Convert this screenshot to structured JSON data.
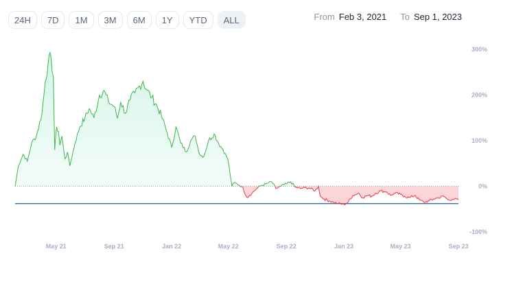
{
  "range_buttons": [
    {
      "label": "24H",
      "active": false
    },
    {
      "label": "7D",
      "active": false
    },
    {
      "label": "1M",
      "active": false
    },
    {
      "label": "3M",
      "active": false
    },
    {
      "label": "6M",
      "active": false
    },
    {
      "label": "1Y",
      "active": false
    },
    {
      "label": "YTD",
      "active": false
    },
    {
      "label": "ALL",
      "active": true
    }
  ],
  "date_range": {
    "from_label": "From",
    "from": "Feb 3, 2021",
    "to_label": "To",
    "to": "Sep 1, 2023"
  },
  "colors": {
    "positive": "#16c784",
    "positive_line": "#3bb54a",
    "negative": "#ea3943",
    "baseline": "#1f5fa8",
    "zero_line": "#9aa3ad"
  },
  "chart_data": {
    "type": "area",
    "title": "",
    "xlabel": "",
    "ylabel": "",
    "y_unit": "%",
    "ylim": [
      -100,
      300
    ],
    "yticks": [
      "300%",
      "200%",
      "100%",
      "0%",
      "-100%"
    ],
    "ytick_values": [
      300,
      200,
      100,
      0,
      -100
    ],
    "xticks": [
      "May 21",
      "Sep 21",
      "Jan 22",
      "May 22",
      "Sep 22",
      "Jan 23",
      "May 23",
      "Sep 23"
    ],
    "xtick_dates": [
      "2021-05-01",
      "2021-09-01",
      "2022-01-01",
      "2022-05-01",
      "2022-09-01",
      "2023-01-01",
      "2023-05-01",
      "2023-09-01"
    ],
    "x_start": "2021-02-03",
    "x_end": "2023-09-01",
    "baseline_value": -38,
    "series": [
      {
        "dates": [
          "2021-02-03",
          "2021-02-10",
          "2021-02-20",
          "2021-03-01",
          "2021-03-10",
          "2021-03-20",
          "2021-04-01",
          "2021-04-08",
          "2021-04-14",
          "2021-04-20",
          "2021-04-25",
          "2021-04-28",
          "2021-05-02",
          "2021-05-06",
          "2021-05-09",
          "2021-05-13",
          "2021-05-17",
          "2021-05-20",
          "2021-05-25",
          "2021-05-30",
          "2021-06-10",
          "2021-06-20",
          "2021-07-01",
          "2021-07-10",
          "2021-07-20",
          "2021-08-01",
          "2021-08-10",
          "2021-08-20",
          "2021-09-01",
          "2021-09-08",
          "2021-09-15",
          "2021-09-25",
          "2021-10-05",
          "2021-10-15",
          "2021-10-25",
          "2021-11-01",
          "2021-11-10",
          "2021-11-20",
          "2021-12-01",
          "2021-12-10",
          "2021-12-20",
          "2022-01-01",
          "2022-01-10",
          "2022-01-20",
          "2022-02-01",
          "2022-02-10",
          "2022-02-20",
          "2022-03-01",
          "2022-03-10",
          "2022-03-20",
          "2022-04-01",
          "2022-04-10",
          "2022-04-20",
          "2022-04-30",
          "2022-05-05",
          "2022-05-09",
          "2022-05-13",
          "2022-05-20",
          "2022-05-30",
          "2022-06-10",
          "2022-06-15",
          "2022-06-20",
          "2022-06-30",
          "2022-07-10",
          "2022-07-20",
          "2022-08-01",
          "2022-08-10",
          "2022-08-20",
          "2022-09-01",
          "2022-09-10",
          "2022-09-20",
          "2022-10-01",
          "2022-10-10",
          "2022-10-20",
          "2022-11-01",
          "2022-11-08",
          "2022-11-12",
          "2022-11-20",
          "2022-12-01",
          "2022-12-10",
          "2022-12-20",
          "2023-01-01",
          "2023-01-10",
          "2023-01-20",
          "2023-02-01",
          "2023-02-10",
          "2023-02-20",
          "2023-03-01",
          "2023-03-10",
          "2023-03-20",
          "2023-04-01",
          "2023-04-10",
          "2023-04-20",
          "2023-05-01",
          "2023-05-10",
          "2023-05-20",
          "2023-06-01",
          "2023-06-10",
          "2023-06-20",
          "2023-07-01",
          "2023-07-10",
          "2023-07-20",
          "2023-08-01",
          "2023-08-10",
          "2023-08-20",
          "2023-09-01"
        ],
        "values": [
          0,
          45,
          70,
          55,
          95,
          110,
          160,
          230,
          270,
          285,
          240,
          80,
          130,
          120,
          90,
          110,
          80,
          60,
          75,
          45,
          95,
          130,
          150,
          170,
          150,
          200,
          210,
          185,
          175,
          150,
          185,
          160,
          190,
          205,
          220,
          230,
          210,
          195,
          175,
          155,
          125,
          85,
          130,
          95,
          75,
          100,
          110,
          70,
          65,
          100,
          115,
          95,
          80,
          60,
          25,
          0,
          8,
          5,
          0,
          -25,
          -20,
          -15,
          -5,
          2,
          5,
          10,
          -5,
          0,
          5,
          10,
          -2,
          -5,
          -3,
          -4,
          -10,
          0,
          -22,
          -28,
          -32,
          -35,
          -38,
          -40,
          -35,
          -20,
          -15,
          -25,
          -20,
          -22,
          -15,
          -10,
          -12,
          -20,
          -15,
          -18,
          -22,
          -25,
          -20,
          -30,
          -35,
          -32,
          -28,
          -25,
          -22,
          -30,
          -28,
          -30
        ]
      }
    ]
  }
}
